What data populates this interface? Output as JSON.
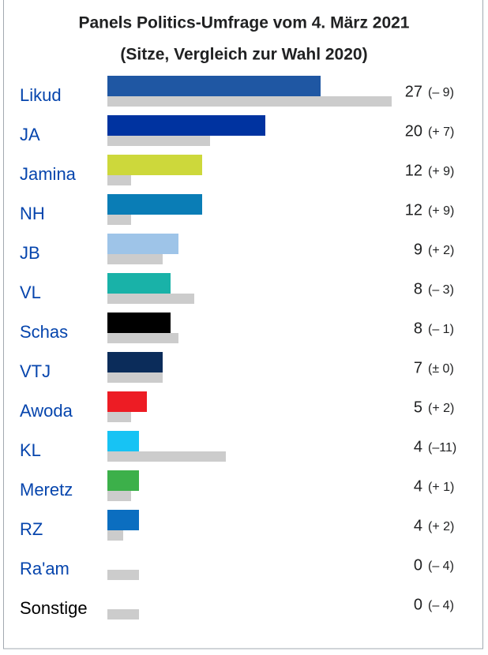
{
  "chart_data": {
    "type": "bar",
    "title": "Panels Politics-Umfrage vom 4. März 2021",
    "subtitle": "(Sitze, Vergleich zur Wahl 2020)",
    "categories": [
      "Likud",
      "JA",
      "Jamina",
      "NH",
      "JB",
      "VL",
      "Schas",
      "VTJ",
      "Awoda",
      "KL",
      "Meretz",
      "RZ",
      "Ra'am",
      "Sonstige"
    ],
    "category_colors": [
      "#0645ad",
      "#0645ad",
      "#0645ad",
      "#0645ad",
      "#0645ad",
      "#0645ad",
      "#0645ad",
      "#0645ad",
      "#0645ad",
      "#0645ad",
      "#0645ad",
      "#0645ad",
      "#0645ad",
      "#000000"
    ],
    "values": [
      27,
      20,
      12,
      12,
      9,
      8,
      8,
      7,
      5,
      4,
      4,
      4,
      0,
      0
    ],
    "colors": [
      "#1f57a3",
      "#0033a0",
      "#cdd83b",
      "#0a7db6",
      "#9ec4e8",
      "#19b2a8",
      "#000000",
      "#0b2c5a",
      "#ed1c24",
      "#17c3f4",
      "#3cb04a",
      "#0b6ec0",
      "#999999",
      "#999999"
    ],
    "previous_values": [
      36,
      13,
      3,
      3,
      7,
      11,
      9,
      7,
      3,
      15,
      3,
      2,
      4,
      4
    ],
    "previous_color": "#cccccc",
    "changes": [
      -9,
      7,
      9,
      9,
      2,
      -3,
      -1,
      0,
      2,
      -11,
      1,
      2,
      -4,
      -4
    ],
    "change_labels": [
      "(– 9)",
      "(+ 7)",
      "(+ 9)",
      "(+ 9)",
      "(+ 2)",
      "(– 3)",
      "(– 1)",
      "(± 0)",
      "(+ 2)",
      "(–11)",
      "(+ 1)",
      "(+ 2)",
      "(– 4)",
      "(– 4)"
    ]
  }
}
